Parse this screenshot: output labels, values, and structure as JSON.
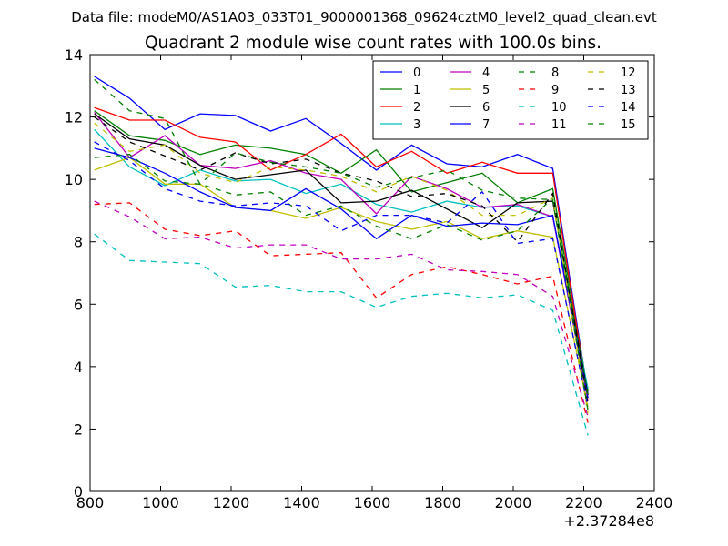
{
  "suptitle": "Data file: modeM0/AS1A03_033T01_9000001368_09624cztM0_level2_quad_clean.evt",
  "chart_data": {
    "type": "line",
    "title": "Quadrant 2 module wise count rates with 100.0s bins.",
    "xlabel": "",
    "ylabel": "",
    "x_offset_label": "+2.37284e8",
    "xlim": [
      800,
      2400
    ],
    "ylim": [
      0,
      14
    ],
    "xticks": [
      800,
      1000,
      1200,
      1400,
      1600,
      1800,
      2000,
      2200,
      2400
    ],
    "yticks": [
      0,
      2,
      4,
      6,
      8,
      10,
      12,
      14
    ],
    "grid": false,
    "legend_position": "top-right",
    "x": [
      812,
      912,
      1012,
      1112,
      1212,
      1312,
      1412,
      1512,
      1612,
      1712,
      1812,
      1912,
      2012,
      2112,
      2212
    ],
    "series": [
      {
        "name": "0",
        "color": "#0000ff",
        "dash": "solid",
        "values": [
          13.3,
          12.6,
          11.6,
          12.1,
          12.05,
          11.55,
          11.95,
          11.15,
          10.3,
          11.1,
          10.5,
          10.4,
          10.8,
          10.35,
          3.1
        ]
      },
      {
        "name": "1",
        "color": "#008000",
        "dash": "solid",
        "values": [
          12.2,
          11.4,
          11.25,
          10.8,
          11.1,
          11.0,
          10.8,
          10.2,
          10.95,
          9.6,
          9.9,
          10.2,
          9.25,
          9.7,
          3.2
        ]
      },
      {
        "name": "2",
        "color": "#ff0000",
        "dash": "solid",
        "values": [
          12.3,
          11.9,
          11.9,
          11.35,
          11.2,
          10.3,
          10.8,
          11.45,
          10.4,
          10.9,
          10.2,
          10.55,
          10.2,
          10.2,
          3.0
        ]
      },
      {
        "name": "3",
        "color": "#00bfbf",
        "dash": "solid",
        "values": [
          11.6,
          10.4,
          9.8,
          10.3,
          9.95,
          10.0,
          9.55,
          9.85,
          9.2,
          8.95,
          9.3,
          9.1,
          9.15,
          8.8,
          3.3
        ]
      },
      {
        "name": "4",
        "color": "#bf00bf",
        "dash": "solid",
        "values": [
          12.15,
          10.7,
          11.4,
          10.45,
          10.35,
          10.6,
          10.2,
          10.0,
          8.9,
          10.1,
          9.7,
          9.1,
          9.2,
          8.8,
          2.9
        ]
      },
      {
        "name": "5",
        "color": "#bfbf00",
        "dash": "solid",
        "values": [
          10.3,
          10.7,
          9.85,
          9.85,
          9.1,
          9.0,
          8.75,
          9.1,
          8.65,
          8.4,
          8.65,
          8.1,
          8.35,
          8.15,
          2.7
        ]
      },
      {
        "name": "6",
        "color": "#000000",
        "dash": "solid",
        "values": [
          12.1,
          11.3,
          11.1,
          10.45,
          10.0,
          10.15,
          10.3,
          9.25,
          9.3,
          9.65,
          9.05,
          8.45,
          9.25,
          9.3,
          3.1
        ]
      },
      {
        "name": "7",
        "color": "#0000ff",
        "dash": "solid",
        "values": [
          11.0,
          10.7,
          10.2,
          9.6,
          9.1,
          9.0,
          9.7,
          9.05,
          8.1,
          8.85,
          8.5,
          8.6,
          8.55,
          8.85,
          3.0
        ]
      },
      {
        "name": "8",
        "color": "#008000",
        "dash": "dashed",
        "values": [
          10.7,
          10.8,
          9.95,
          9.85,
          9.5,
          9.6,
          8.85,
          9.15,
          8.5,
          8.1,
          8.55,
          8.05,
          8.35,
          9.4,
          3.0
        ]
      },
      {
        "name": "9",
        "color": "#ff0000",
        "dash": "dashed",
        "values": [
          9.2,
          9.25,
          8.4,
          8.2,
          8.35,
          7.55,
          7.6,
          7.65,
          6.2,
          6.95,
          7.2,
          6.95,
          6.65,
          6.9,
          2.2
        ]
      },
      {
        "name": "10",
        "color": "#00bfbf",
        "dash": "dashed",
        "values": [
          8.25,
          7.4,
          7.35,
          7.3,
          6.55,
          6.6,
          6.4,
          6.4,
          5.9,
          6.25,
          6.35,
          6.2,
          6.3,
          5.8,
          1.8
        ]
      },
      {
        "name": "11",
        "color": "#bf00bf",
        "dash": "dashed",
        "values": [
          9.3,
          8.8,
          8.1,
          8.15,
          7.8,
          7.9,
          7.9,
          7.45,
          7.45,
          7.6,
          7.1,
          7.05,
          6.95,
          6.25,
          2.4
        ]
      },
      {
        "name": "12",
        "color": "#bfbf00",
        "dash": "dashed",
        "values": [
          11.8,
          10.9,
          11.1,
          10.2,
          9.9,
          10.4,
          10.3,
          10.1,
          9.6,
          10.1,
          9.65,
          8.85,
          8.85,
          9.4,
          2.5
        ]
      },
      {
        "name": "13",
        "color": "#000000",
        "dash": "dashed",
        "values": [
          12.0,
          11.2,
          10.75,
          10.3,
          10.85,
          10.5,
          10.65,
          10.2,
          9.95,
          9.45,
          9.55,
          9.15,
          8.0,
          9.55,
          2.8
        ]
      },
      {
        "name": "14",
        "color": "#0000ff",
        "dash": "dashed",
        "values": [
          11.2,
          10.6,
          9.7,
          9.3,
          9.15,
          9.25,
          9.15,
          8.35,
          8.85,
          8.85,
          8.6,
          9.6,
          7.95,
          8.1,
          2.7
        ]
      },
      {
        "name": "15",
        "color": "#008000",
        "dash": "dashed",
        "values": [
          13.2,
          12.2,
          11.95,
          9.85,
          10.85,
          10.55,
          10.4,
          10.2,
          9.75,
          10.05,
          10.3,
          9.65,
          9.4,
          9.35,
          2.6
        ]
      }
    ]
  }
}
